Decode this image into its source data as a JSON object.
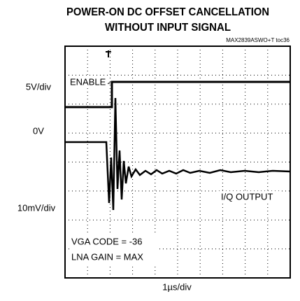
{
  "header": {
    "title_line1": "POWER-ON DC OFFSET CANCELLATION",
    "title_line2": "WITHOUT INPUT SIGNAL",
    "figure_id": "MAX2839ASWO+T toc36"
  },
  "scale_labels": {
    "top": "5V/div",
    "zero": "0V",
    "bottom": "10mV/div",
    "time": "1µs/div"
  },
  "trace_labels": {
    "enable": "ENABLE",
    "output": "I/Q OUTPUT"
  },
  "notes": {
    "line1": "VGA CODE = -36",
    "line2": "LNA GAIN = MAX"
  }
}
